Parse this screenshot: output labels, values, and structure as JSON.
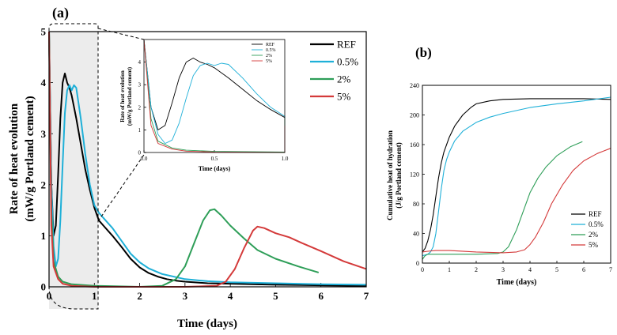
{
  "figure": {
    "panel_a_label": "(a)",
    "panel_b_label": "(b)"
  },
  "colors": {
    "REF": "#000000",
    "0.5%": "#1fb0d8",
    "2%": "#2e9e58",
    "5%": "#d43a3a",
    "shade": "#ececec"
  },
  "chart_data": [
    {
      "panel": "(a)",
      "type": "line",
      "xlabel": "Time (days)",
      "ylabel_line1": "Rate of heat evolution",
      "ylabel_line2": "(mW/g Portland cement)",
      "xlim": [
        0,
        7
      ],
      "ylim": [
        0,
        5
      ],
      "xticks": [
        "0",
        "1",
        "2",
        "3",
        "4",
        "5",
        "6",
        "7"
      ],
      "yticks": [
        "0",
        "1",
        "2",
        "3",
        "4",
        "5"
      ],
      "legend_position": "top-right",
      "legend": [
        "REF",
        "0.5%",
        "2%",
        "5%"
      ],
      "series": [
        {
          "name": "REF",
          "points": [
            [
              0.0,
              5.0
            ],
            [
              0.05,
              2.0
            ],
            [
              0.1,
              1.0
            ],
            [
              0.15,
              1.2
            ],
            [
              0.2,
              2.2
            ],
            [
              0.25,
              3.3
            ],
            [
              0.3,
              4.0
            ],
            [
              0.35,
              4.18
            ],
            [
              0.4,
              4.0
            ],
            [
              0.45,
              3.9
            ],
            [
              0.5,
              3.75
            ],
            [
              0.6,
              3.3
            ],
            [
              0.7,
              2.8
            ],
            [
              0.8,
              2.3
            ],
            [
              0.9,
              1.9
            ],
            [
              1.0,
              1.55
            ],
            [
              1.1,
              1.3
            ],
            [
              1.2,
              1.2
            ],
            [
              1.4,
              1.0
            ],
            [
              1.6,
              0.78
            ],
            [
              1.8,
              0.55
            ],
            [
              2.0,
              0.38
            ],
            [
              2.2,
              0.27
            ],
            [
              2.4,
              0.2
            ],
            [
              2.6,
              0.15
            ],
            [
              2.8,
              0.12
            ],
            [
              3.0,
              0.1
            ],
            [
              3.5,
              0.07
            ],
            [
              4.0,
              0.06
            ],
            [
              5.0,
              0.04
            ],
            [
              6.0,
              0.03
            ],
            [
              7.0,
              0.02
            ]
          ]
        },
        {
          "name": "0.5%",
          "points": [
            [
              0.0,
              5.0
            ],
            [
              0.05,
              2.0
            ],
            [
              0.1,
              0.8
            ],
            [
              0.15,
              0.4
            ],
            [
              0.2,
              0.55
            ],
            [
              0.25,
              1.3
            ],
            [
              0.3,
              2.4
            ],
            [
              0.35,
              3.4
            ],
            [
              0.4,
              3.85
            ],
            [
              0.45,
              3.95
            ],
            [
              0.5,
              3.85
            ],
            [
              0.55,
              3.95
            ],
            [
              0.6,
              3.9
            ],
            [
              0.7,
              3.3
            ],
            [
              0.8,
              2.6
            ],
            [
              0.9,
              2.0
            ],
            [
              1.0,
              1.6
            ],
            [
              1.1,
              1.45
            ],
            [
              1.2,
              1.35
            ],
            [
              1.4,
              1.15
            ],
            [
              1.6,
              0.9
            ],
            [
              1.8,
              0.65
            ],
            [
              2.0,
              0.48
            ],
            [
              2.2,
              0.36
            ],
            [
              2.5,
              0.25
            ],
            [
              3.0,
              0.15
            ],
            [
              3.5,
              0.11
            ],
            [
              4.0,
              0.09
            ],
            [
              5.0,
              0.07
            ],
            [
              6.0,
              0.05
            ],
            [
              7.0,
              0.04
            ]
          ]
        },
        {
          "name": "2%",
          "points": [
            [
              0.0,
              5.0
            ],
            [
              0.05,
              1.5
            ],
            [
              0.1,
              0.5
            ],
            [
              0.2,
              0.2
            ],
            [
              0.3,
              0.1
            ],
            [
              0.5,
              0.05
            ],
            [
              1.0,
              0.02
            ],
            [
              2.0,
              0.0
            ],
            [
              2.5,
              0.02
            ],
            [
              2.8,
              0.15
            ],
            [
              3.0,
              0.4
            ],
            [
              3.2,
              0.85
            ],
            [
              3.4,
              1.3
            ],
            [
              3.55,
              1.5
            ],
            [
              3.65,
              1.52
            ],
            [
              3.8,
              1.4
            ],
            [
              4.0,
              1.2
            ],
            [
              4.3,
              0.95
            ],
            [
              4.6,
              0.72
            ],
            [
              5.0,
              0.55
            ],
            [
              5.5,
              0.4
            ],
            [
              5.95,
              0.28
            ]
          ]
        },
        {
          "name": "5%",
          "points": [
            [
              0.0,
              5.0
            ],
            [
              0.05,
              1.2
            ],
            [
              0.1,
              0.4
            ],
            [
              0.2,
              0.15
            ],
            [
              0.3,
              0.06
            ],
            [
              0.5,
              0.02
            ],
            [
              1.0,
              0.0
            ],
            [
              3.0,
              0.0
            ],
            [
              3.7,
              0.02
            ],
            [
              3.9,
              0.1
            ],
            [
              4.1,
              0.35
            ],
            [
              4.3,
              0.75
            ],
            [
              4.5,
              1.1
            ],
            [
              4.6,
              1.18
            ],
            [
              4.75,
              1.15
            ],
            [
              5.0,
              1.05
            ],
            [
              5.3,
              0.97
            ],
            [
              5.6,
              0.85
            ],
            [
              6.0,
              0.7
            ],
            [
              6.5,
              0.5
            ],
            [
              7.0,
              0.35
            ]
          ]
        }
      ],
      "inset": {
        "ylabel_line1": "Rate of heat evolution",
        "ylabel_line2": "(mW/g Portland cement)",
        "xlabel": "Time (days)",
        "xlim": [
          0,
          1
        ],
        "ylim": [
          0,
          5
        ],
        "xticks": [
          "0.0",
          "0.5",
          "1.0"
        ],
        "yticks": [
          "0",
          "1",
          "2",
          "3",
          "4"
        ],
        "legend": [
          "REF",
          "0.5%",
          "2%",
          "5%"
        ],
        "legend_position": "top-right"
      }
    },
    {
      "panel": "(b)",
      "type": "line",
      "xlabel": "Time (days)",
      "ylabel_line1": "Cumulative heat of hydration",
      "ylabel_line2": "(J/g Portland cement)",
      "xlim": [
        0,
        7
      ],
      "ylim": [
        0,
        240
      ],
      "xticks": [
        "0",
        "1",
        "2",
        "3",
        "4",
        "5",
        "6",
        "7"
      ],
      "yticks": [
        "0",
        "20",
        "40",
        "60",
        "80",
        "100",
        "120",
        "140",
        "160",
        "180",
        "200",
        "220",
        "240"
      ],
      "legend_position": "bottom-right",
      "legend": [
        "REF",
        "0.5%",
        "2%",
        "5%"
      ],
      "series": [
        {
          "name": "REF",
          "points": [
            [
              0.0,
              15
            ],
            [
              0.1,
              20
            ],
            [
              0.2,
              30
            ],
            [
              0.3,
              45
            ],
            [
              0.4,
              65
            ],
            [
              0.5,
              90
            ],
            [
              0.6,
              115
            ],
            [
              0.7,
              135
            ],
            [
              0.8,
              150
            ],
            [
              1.0,
              170
            ],
            [
              1.2,
              185
            ],
            [
              1.5,
              200
            ],
            [
              1.8,
              210
            ],
            [
              2.0,
              215
            ],
            [
              2.5,
              219
            ],
            [
              3.0,
              221
            ],
            [
              4.0,
              222
            ],
            [
              5.0,
              222
            ],
            [
              6.0,
              222
            ],
            [
              7.0,
              221
            ]
          ]
        },
        {
          "name": "0.5%",
          "points": [
            [
              0.0,
              10
            ],
            [
              0.2,
              12
            ],
            [
              0.3,
              15
            ],
            [
              0.4,
              22
            ],
            [
              0.5,
              40
            ],
            [
              0.6,
              70
            ],
            [
              0.7,
              100
            ],
            [
              0.8,
              125
            ],
            [
              0.9,
              140
            ],
            [
              1.0,
              150
            ],
            [
              1.2,
              165
            ],
            [
              1.5,
              178
            ],
            [
              2.0,
              190
            ],
            [
              2.5,
              197
            ],
            [
              3.0,
              202
            ],
            [
              4.0,
              210
            ],
            [
              5.0,
              215
            ],
            [
              6.0,
              219
            ],
            [
              7.0,
              224
            ]
          ]
        },
        {
          "name": "2%",
          "points": [
            [
              0.0,
              5
            ],
            [
              0.1,
              10
            ],
            [
              0.2,
              12
            ],
            [
              0.5,
              12
            ],
            [
              1.0,
              12
            ],
            [
              2.0,
              12
            ],
            [
              2.8,
              13
            ],
            [
              3.0,
              15
            ],
            [
              3.2,
              22
            ],
            [
              3.5,
              45
            ],
            [
              3.8,
              75
            ],
            [
              4.0,
              95
            ],
            [
              4.3,
              115
            ],
            [
              4.6,
              130
            ],
            [
              5.0,
              145
            ],
            [
              5.5,
              157
            ],
            [
              5.95,
              164
            ]
          ]
        },
        {
          "name": "5%",
          "points": [
            [
              0.0,
              15
            ],
            [
              0.2,
              16
            ],
            [
              0.5,
              17
            ],
            [
              1.0,
              17
            ],
            [
              2.0,
              15
            ],
            [
              3.0,
              14
            ],
            [
              3.5,
              15
            ],
            [
              3.8,
              18
            ],
            [
              4.0,
              25
            ],
            [
              4.2,
              35
            ],
            [
              4.5,
              55
            ],
            [
              4.8,
              80
            ],
            [
              5.2,
              105
            ],
            [
              5.6,
              125
            ],
            [
              6.0,
              138
            ],
            [
              6.5,
              148
            ],
            [
              7.0,
              155
            ]
          ]
        }
      ]
    }
  ]
}
